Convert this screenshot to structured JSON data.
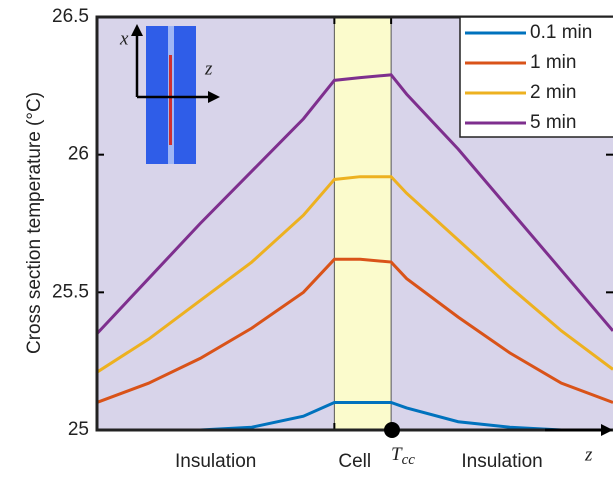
{
  "chart_data": {
    "type": "line",
    "y_label": "Cross section temperature (°C)",
    "x": [
      0,
      10,
      20,
      30,
      40,
      46,
      51,
      57,
      60,
      70,
      80,
      90,
      100
    ],
    "xlim": [
      0,
      100
    ],
    "ylim": [
      25,
      26.5
    ],
    "yticks": [
      25,
      25.5,
      26,
      26.5
    ],
    "cell_range": [
      46,
      57
    ],
    "region_labels": [
      "Insulation",
      "Cell",
      "Insulation"
    ],
    "axis_label_z": "z",
    "marker_label": {
      "text": "T",
      "subscript": "cc"
    },
    "inset_labels": [
      "x",
      "z"
    ],
    "legend_position": "upper right",
    "background_color": "#d8d4ea",
    "cell_color": "#fbfbcc",
    "series": [
      {
        "name": "0.1 min",
        "color": "#0072bd",
        "values": [
          25.0,
          25.0,
          25.0,
          25.01,
          25.05,
          25.1,
          25.1,
          25.1,
          25.08,
          25.03,
          25.01,
          25.0,
          25.0
        ]
      },
      {
        "name": "1 min",
        "color": "#d95319",
        "values": [
          25.1,
          25.17,
          25.26,
          25.37,
          25.5,
          25.62,
          25.62,
          25.61,
          25.55,
          25.41,
          25.28,
          25.17,
          25.1
        ]
      },
      {
        "name": "2 min",
        "color": "#edb120",
        "values": [
          25.21,
          25.33,
          25.47,
          25.61,
          25.78,
          25.91,
          25.92,
          25.92,
          25.86,
          25.69,
          25.52,
          25.36,
          25.22
        ]
      },
      {
        "name": "5 min",
        "color": "#7e2f8e",
        "values": [
          25.35,
          25.55,
          25.75,
          25.94,
          26.13,
          26.27,
          26.28,
          26.29,
          26.22,
          26.02,
          25.8,
          25.58,
          25.36
        ]
      }
    ]
  }
}
